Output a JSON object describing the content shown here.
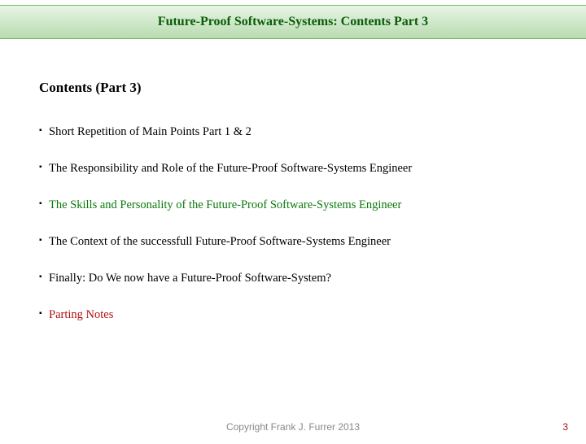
{
  "header": {
    "title": "Future-Proof Software-Systems: Contents Part 3"
  },
  "section": {
    "heading": "Contents (Part 3)"
  },
  "items": [
    {
      "text": "Short Repetition of Main Points Part 1 & 2",
      "style": "normal"
    },
    {
      "text": "The Responsibility and Role of the Future-Proof Software-Systems Engineer",
      "style": "normal"
    },
    {
      "text": "The Skills and Personality of the Future-Proof Software-Systems Engineer",
      "style": "highlight"
    },
    {
      "text": "The Context of the successfull Future-Proof Software-Systems Engineer",
      "style": "normal"
    },
    {
      "text": "Finally: Do We now have a Future-Proof Software-System?",
      "style": "normal"
    },
    {
      "text": "Parting Notes",
      "style": "red"
    }
  ],
  "footer": {
    "copyright": "Copyright Frank J. Furrer 2013",
    "pageNumber": "3"
  },
  "colors": {
    "headerGradientTop": "#e8f5e6",
    "headerGradientBottom": "#b8dcb0",
    "headerBorder": "#7ab56e",
    "headerText": "#0a5c0a",
    "highlightText": "#0a7a0a",
    "redText": "#b01010",
    "footerText": "#888888"
  }
}
